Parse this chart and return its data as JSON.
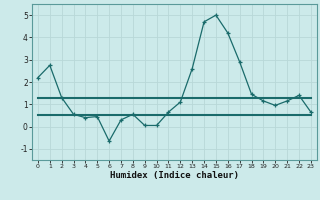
{
  "x": [
    0,
    1,
    2,
    3,
    4,
    5,
    6,
    7,
    8,
    9,
    10,
    11,
    12,
    13,
    14,
    15,
    16,
    17,
    18,
    19,
    20,
    21,
    22,
    23
  ],
  "y_line": [
    2.2,
    2.75,
    1.3,
    0.55,
    0.4,
    0.45,
    -0.65,
    0.3,
    0.55,
    0.05,
    0.05,
    0.65,
    1.1,
    2.6,
    4.7,
    5.0,
    4.2,
    2.9,
    1.45,
    1.15,
    0.95,
    1.15,
    1.4,
    0.65
  ],
  "y_flat1": [
    1.28,
    1.28,
    1.28,
    1.28,
    1.28,
    1.28,
    1.28,
    1.28,
    1.28,
    1.28,
    1.28,
    1.28,
    1.28,
    1.28,
    1.28,
    1.28,
    1.28,
    1.28,
    1.28,
    1.28,
    1.28,
    1.28,
    1.28,
    1.28
  ],
  "y_flat2": [
    0.5,
    0.5,
    0.5,
    0.5,
    0.5,
    0.5,
    0.5,
    0.5,
    0.5,
    0.5,
    0.5,
    0.5,
    0.5,
    0.5,
    0.5,
    0.5,
    0.5,
    0.5,
    0.5,
    0.5,
    0.5,
    0.5,
    0.5,
    0.5
  ],
  "line_color": "#1a6b6b",
  "background_color": "#cceaea",
  "grid_color_major": "#b8d8d8",
  "grid_color_minor": "#d8eeee",
  "xlabel": "Humidex (Indice chaleur)",
  "ylim": [
    -1.5,
    5.5
  ],
  "xlim": [
    -0.5,
    23.5
  ],
  "yticks": [
    -1,
    0,
    1,
    2,
    3,
    4,
    5
  ],
  "xticks": [
    0,
    1,
    2,
    3,
    4,
    5,
    6,
    7,
    8,
    9,
    10,
    11,
    12,
    13,
    14,
    15,
    16,
    17,
    18,
    19,
    20,
    21,
    22,
    23
  ]
}
